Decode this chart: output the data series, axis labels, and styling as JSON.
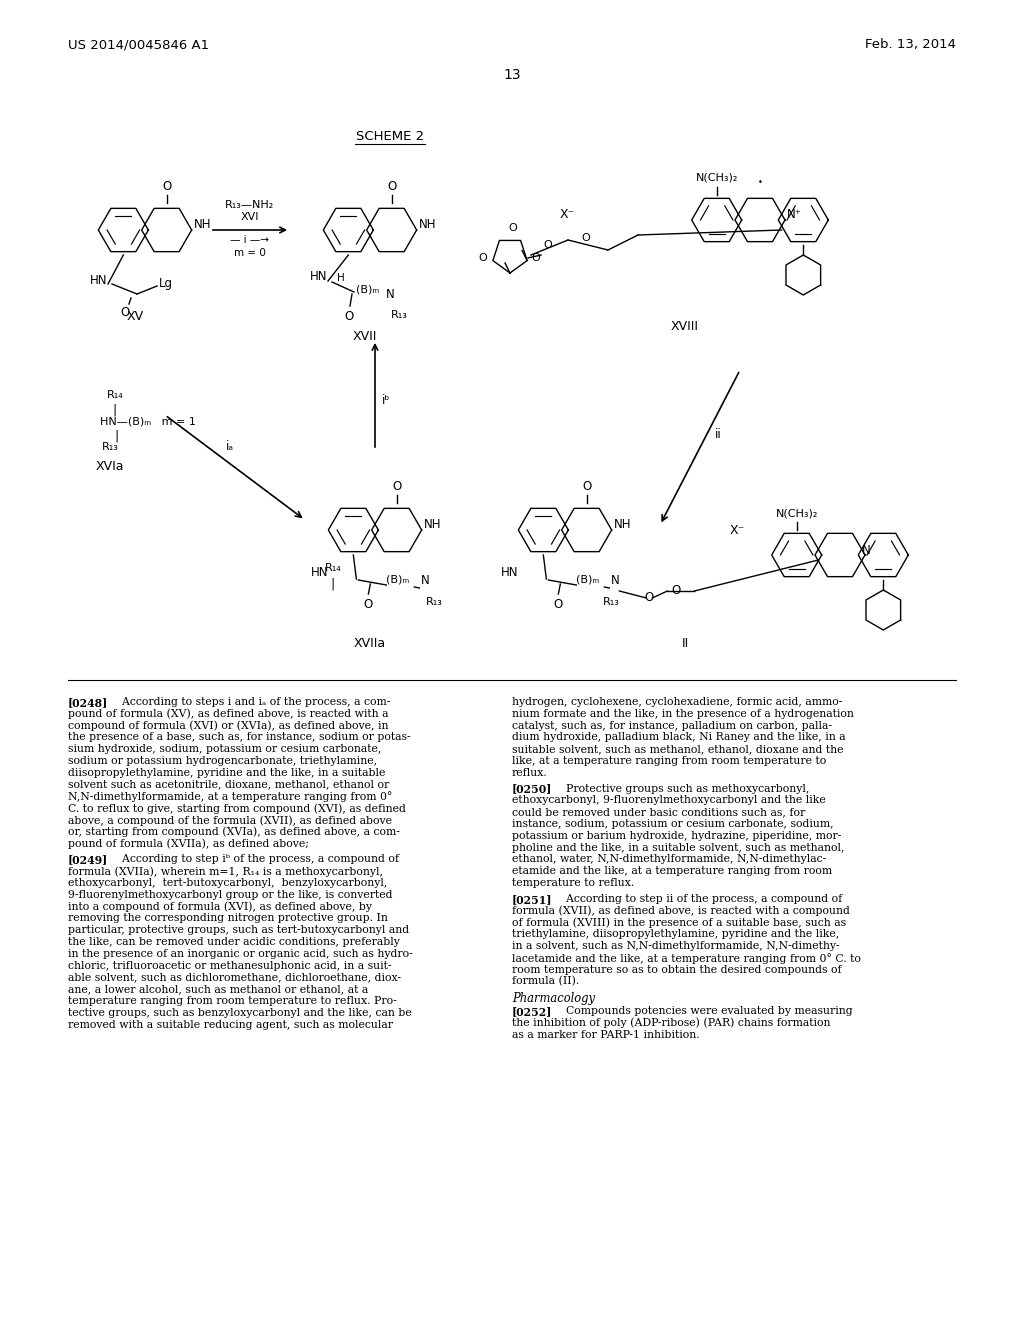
{
  "page_header_left": "US 2014/0045846 A1",
  "page_header_right": "Feb. 13, 2014",
  "page_number": "13",
  "scheme_label": "SCHEME 2",
  "background_color": "#ffffff",
  "text_color": "#000000"
}
